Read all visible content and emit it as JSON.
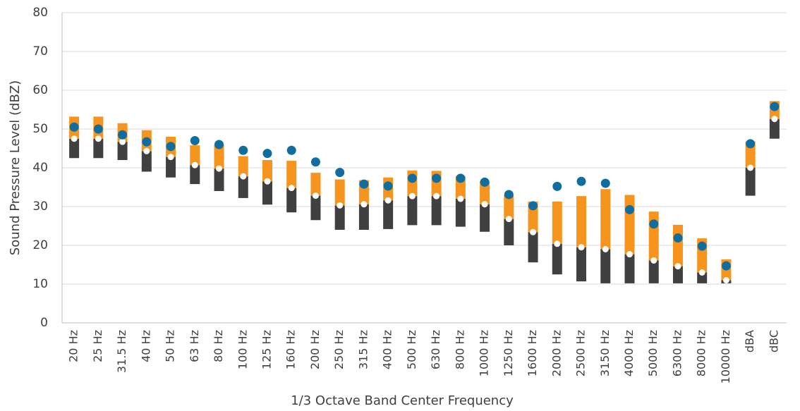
{
  "chart_data": {
    "type": "range",
    "x_label": "1/3 Octave Band Center Frequency",
    "y_label": "Sound Pressure Level (dBZ)",
    "categories": [
      "20 Hz",
      "25 Hz",
      "31.5 Hz",
      "40 Hz",
      "50 Hz",
      "63 Hz",
      "80 Hz",
      "100 Hz",
      "125 Hz",
      "160 Hz",
      "200 Hz",
      "250 Hz",
      "315 Hz",
      "400 Hz",
      "500 Hz",
      "630 Hz",
      "800 Hz",
      "1000 Hz",
      "1250 Hz",
      "1600 Hz",
      "2000 Hz",
      "2500 Hz",
      "3150 Hz",
      "4000 Hz",
      "5000 Hz",
      "6300 Hz",
      "8000 Hz",
      "10000 Hz",
      "dBA",
      "dBC"
    ],
    "series": [
      {
        "color": "#404040",
        "marker": "bar",
        "values": [
          42.5,
          42.5,
          42,
          39,
          37.5,
          35.8,
          34,
          32.2,
          30.5,
          28.5,
          26.5,
          24,
          24,
          24.2,
          25.2,
          25.2,
          24.8,
          23.5,
          20,
          15.6,
          12.5,
          10.7,
          10.2,
          10.2,
          10.2,
          10.2,
          10.2,
          10.2,
          32.8,
          47.5
        ]
      },
      {
        "color": "#ffffff",
        "marker": "dot",
        "values": [
          47.5,
          47.5,
          46.7,
          44.3,
          42.8,
          40.7,
          39.8,
          37.8,
          36.5,
          34.8,
          32.8,
          30.3,
          30.6,
          31.6,
          32.7,
          32.7,
          32,
          30.6,
          26.8,
          23.4,
          20.4,
          19.5,
          19,
          17.7,
          16.1,
          14.6,
          13,
          11,
          40,
          52.6
        ]
      },
      {
        "color": "#f7941d",
        "marker": "bar",
        "values": [
          53.2,
          53.2,
          51.5,
          49.7,
          48,
          45.8,
          46,
          43,
          42,
          41.8,
          38.7,
          37,
          36.8,
          37.5,
          39.3,
          39.2,
          37.8,
          36.5,
          33,
          31.3,
          31.3,
          32.7,
          34.5,
          33,
          28.7,
          25.3,
          21.8,
          16.4,
          46.8,
          57.2
        ]
      },
      {
        "color": "#0f6e9f",
        "marker": "dot",
        "values": [
          50.5,
          50,
          48.5,
          46.7,
          45.5,
          47,
          46,
          44.5,
          43.7,
          44.5,
          41.5,
          38.8,
          35.8,
          35.3,
          37.3,
          37.3,
          37.3,
          36.3,
          33.1,
          30.2,
          35.2,
          36.5,
          36,
          29.2,
          25.5,
          21.9,
          19.8,
          14.7,
          46.2,
          55.8
        ]
      }
    ],
    "ylim": [
      0,
      80
    ],
    "yticks": [
      0,
      10,
      20,
      30,
      40,
      50,
      60,
      70,
      80
    ],
    "grid": true
  }
}
